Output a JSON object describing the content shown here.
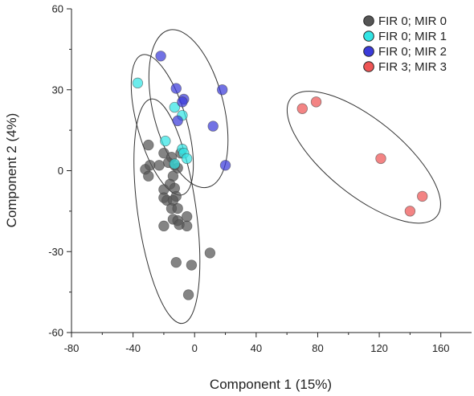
{
  "chart_data": {
    "type": "scatter",
    "title": "",
    "xlabel": "Component 1 (15%)",
    "ylabel": "Component 2 (4%)",
    "xlim": [
      -80,
      180
    ],
    "ylim": [
      -60,
      60
    ],
    "xticks": [
      -80,
      -40,
      0,
      40,
      80,
      120,
      160
    ],
    "yticks": [
      -60,
      -30,
      0,
      30,
      60
    ],
    "grid": false,
    "legend_position": "top-right",
    "series": [
      {
        "name": "FIR 0; MIR 0",
        "color": "#555555",
        "points": [
          [
            -30,
            9.5
          ],
          [
            -20,
            6.5
          ],
          [
            -15,
            5
          ],
          [
            -9,
            6.5
          ],
          [
            -32,
            0.5
          ],
          [
            -29,
            2
          ],
          [
            -30,
            -2
          ],
          [
            -23,
            2
          ],
          [
            -17,
            3
          ],
          [
            -13,
            2
          ],
          [
            -11,
            1
          ],
          [
            -14,
            -2
          ],
          [
            -20,
            -7
          ],
          [
            -16,
            -5
          ],
          [
            -13,
            -6.5
          ],
          [
            -20,
            -10
          ],
          [
            -18,
            -11
          ],
          [
            -12,
            -9.5
          ],
          [
            -14,
            -11
          ],
          [
            -15,
            -14
          ],
          [
            -11,
            -14
          ],
          [
            -14,
            -18
          ],
          [
            -11,
            -18.5
          ],
          [
            -5,
            -17
          ],
          [
            -10,
            -20
          ],
          [
            -20,
            -20.5
          ],
          [
            -5,
            -20.5
          ],
          [
            -12,
            -34
          ],
          [
            -2,
            -35
          ],
          [
            10,
            -30.5
          ],
          [
            -4,
            -46
          ]
        ]
      },
      {
        "name": "FIR 0; MIR 1",
        "color": "#33e5e5",
        "points": [
          [
            -37,
            32.5
          ],
          [
            -13,
            23.5
          ],
          [
            -8,
            20.5
          ],
          [
            -19,
            11
          ],
          [
            -8,
            8
          ],
          [
            -7,
            6.5
          ],
          [
            -5,
            4.5
          ],
          [
            -13,
            2.5
          ]
        ]
      },
      {
        "name": "FIR 0; MIR 2",
        "color": "#3b3bd9",
        "points": [
          [
            -22,
            42.5
          ],
          [
            -12,
            30.5
          ],
          [
            18,
            30
          ],
          [
            -7,
            26.5
          ],
          [
            -8,
            25.5
          ],
          [
            -11,
            18.5
          ],
          [
            12,
            16.5
          ],
          [
            20,
            2
          ]
        ]
      },
      {
        "name": "FIR 3; MIR 3",
        "color": "#ee5555",
        "points": [
          [
            70,
            23
          ],
          [
            79,
            25.5
          ],
          [
            121,
            4.5
          ],
          [
            148,
            -9.5
          ],
          [
            140,
            -15
          ]
        ]
      }
    ],
    "ellipses": [
      {
        "series": "FIR 0; MIR 0",
        "cx": -18,
        "cy": -15,
        "rx": 19,
        "ry": 42,
        "rotate": -8
      },
      {
        "series": "FIR 0; MIR 1",
        "cx": -21,
        "cy": 17,
        "rx": 16,
        "ry": 27,
        "rotate": -16
      },
      {
        "series": "FIR 0; MIR 2",
        "cx": -4,
        "cy": 23,
        "rx": 23,
        "ry": 30,
        "rotate": -14
      },
      {
        "series": "FIR 3; MIR 3",
        "cx": 110,
        "cy": 5,
        "rx": 61,
        "ry": 14,
        "rotate": 39
      }
    ]
  }
}
